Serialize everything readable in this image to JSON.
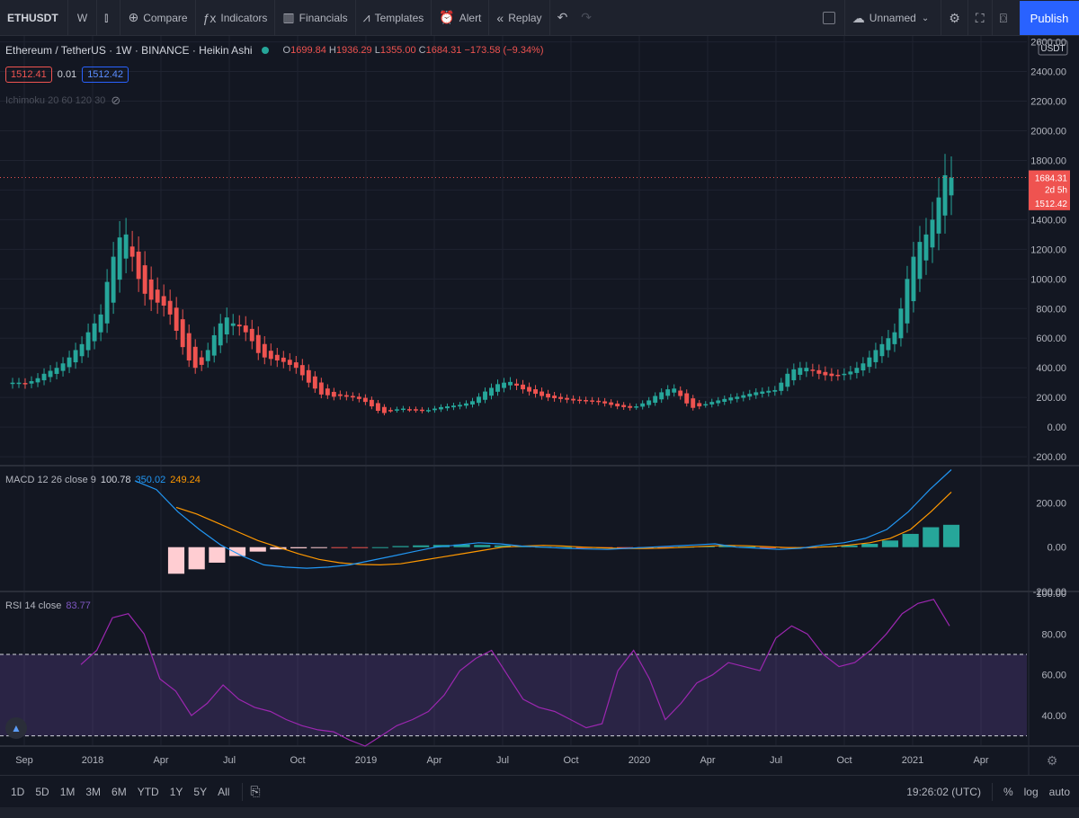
{
  "toolbar": {
    "symbol": "ETHUSDT",
    "interval": "W",
    "compare": "Compare",
    "indicators": "Indicators",
    "financials": "Financials",
    "templates": "Templates",
    "alert": "Alert",
    "replay": "Replay",
    "layout_name": "Unnamed",
    "publish": "Publish"
  },
  "legend": {
    "title": "Ethereum / TetherUS · 1W · BINANCE · Heikin Ashi",
    "o_label": "O",
    "o": "1699.84",
    "h_label": "H",
    "h": "1936.29",
    "l_label": "L",
    "l": "1355.00",
    "c_label": "C",
    "c": "1684.31",
    "change": "−173.58 (−9.34%)",
    "bid": "1512.41",
    "spread": "0.01",
    "ask": "1512.42",
    "ichimoku": "Ichimoku 20 60 120 30"
  },
  "price_axis": {
    "currency": "USDT",
    "last_price": "1684.31",
    "countdown": "2d 5h",
    "ask_tag": "1512.42"
  },
  "macd": {
    "label": "MACD 12 26 close 9",
    "hist": "100.78",
    "macd": "350.02",
    "signal": "249.24"
  },
  "rsi": {
    "label": "RSI 14 close",
    "value": "83.77"
  },
  "bottom": {
    "ranges": [
      "1D",
      "5D",
      "1M",
      "3M",
      "6M",
      "YTD",
      "1Y",
      "5Y",
      "All"
    ],
    "time": "19:26:02 (UTC)",
    "pct": "%",
    "log": "log",
    "auto": "auto"
  },
  "colors": {
    "up": "#26a69a",
    "down": "#ef5350",
    "macd_line": "#2196f3",
    "signal_line": "#ff9800",
    "rsi_line": "#9c27b0",
    "rsi_band": "#7e57c2",
    "background": "#131722"
  },
  "chart_data": [
    {
      "type": "candlestick",
      "y_axis_ticks": [
        -200,
        0,
        200,
        400,
        600,
        800,
        1000,
        1200,
        1400,
        1600,
        1800,
        2000,
        2200,
        2400,
        2600
      ],
      "y_axis_tick_labels": [
        "-200.00",
        "0.00",
        "200.00",
        "400.00",
        "600.00",
        "800.00",
        "1000.00",
        "1200.00",
        "1400.00",
        "1600.00",
        "1800.00",
        "2000.00",
        "2200.00",
        "2400.00",
        "2600.00"
      ],
      "ylim": [
        -260,
        2640
      ],
      "x_axis_labels": [
        "Sep",
        "2018",
        "Apr",
        "Jul",
        "Oct",
        "2019",
        "Apr",
        "Jul",
        "Oct",
        "2020",
        "Apr",
        "Jul",
        "Oct",
        "2021",
        "Apr"
      ],
      "close_approx": [
        300,
        300,
        290,
        310,
        330,
        360,
        380,
        400,
        430,
        470,
        520,
        560,
        640,
        700,
        760,
        980,
        1150,
        1280,
        1300,
        1150,
        1000,
        900,
        860,
        840,
        820,
        760,
        650,
        540,
        450,
        400,
        420,
        520,
        620,
        700,
        740,
        700,
        680,
        640,
        580,
        500,
        470,
        460,
        450,
        440,
        420,
        400,
        350,
        300,
        260,
        220,
        215,
        205,
        210,
        205,
        200,
        190,
        170,
        140,
        110,
        95,
        115,
        120,
        125,
        120,
        115,
        110,
        115,
        125,
        135,
        140,
        145,
        150,
        160,
        175,
        205,
        240,
        265,
        290,
        300,
        305,
        280,
        255,
        240,
        225,
        210,
        200,
        195,
        190,
        185,
        180,
        180,
        178,
        175,
        170,
        160,
        150,
        140,
        135,
        130,
        140,
        160,
        180,
        210,
        235,
        255,
        260,
        210,
        160,
        130,
        140,
        155,
        170,
        180,
        190,
        200,
        205,
        215,
        225,
        235,
        240,
        245,
        250,
        300,
        360,
        390,
        400,
        400,
        380,
        360,
        350,
        345,
        350,
        360,
        375,
        400,
        430,
        470,
        520,
        560,
        600,
        640,
        800,
        1000,
        1150,
        1250,
        1300,
        1400,
        1550,
        1700,
        1684
      ],
      "high": 1936.29,
      "low": 1355.0,
      "last": 1684.31
    },
    {
      "type": "line",
      "name": "MACD 12 26 close 9",
      "y_axis_ticks": [
        -200,
        0,
        200
      ],
      "y_axis_tick_labels": [
        "-200.00",
        "0.00",
        "200.00"
      ],
      "ylim": [
        -200,
        360
      ],
      "series": [
        {
          "name": "MACD",
          "values": [
            300,
            260,
            160,
            80,
            10,
            -40,
            -80,
            -90,
            -95,
            -90,
            -80,
            -60,
            -40,
            -20,
            0,
            10,
            20,
            15,
            5,
            0,
            -5,
            -8,
            -10,
            -5,
            0,
            5,
            10,
            15,
            0,
            -5,
            -10,
            -5,
            10,
            20,
            40,
            80,
            160,
            260,
            350
          ]
        },
        {
          "name": "Signal",
          "values": [
            180,
            150,
            110,
            70,
            30,
            0,
            -30,
            -55,
            -70,
            -78,
            -80,
            -75,
            -60,
            -45,
            -30,
            -15,
            0,
            5,
            8,
            5,
            0,
            -3,
            -6,
            -6,
            -4,
            0,
            4,
            8,
            6,
            2,
            -2,
            -2,
            2,
            10,
            20,
            40,
            80,
            160,
            249
          ]
        },
        {
          "name": "Histogram",
          "values": [
            -120,
            -100,
            -70,
            -40,
            -20,
            -10,
            -5,
            -3,
            -2,
            -1,
            0,
            5,
            8,
            10,
            12,
            10,
            8,
            5,
            2,
            0,
            -2,
            -4,
            -5,
            -3,
            -1,
            2,
            4,
            5,
            2,
            -2,
            -4,
            -2,
            4,
            8,
            15,
            30,
            60,
            90,
            101
          ]
        }
      ]
    },
    {
      "type": "line",
      "name": "RSI 14 close",
      "y_axis_ticks": [
        40,
        60,
        80,
        100
      ],
      "y_axis_tick_labels": [
        "40.00",
        "60.00",
        "80.00",
        "100.00"
      ],
      "ylim": [
        25,
        100
      ],
      "band": [
        30,
        70
      ],
      "series": [
        {
          "name": "RSI",
          "values": [
            65,
            72,
            88,
            90,
            80,
            58,
            52,
            40,
            46,
            55,
            48,
            44,
            42,
            38,
            35,
            33,
            32,
            28,
            25,
            30,
            35,
            38,
            42,
            50,
            62,
            68,
            72,
            60,
            48,
            44,
            42,
            38,
            34,
            36,
            62,
            72,
            58,
            38,
            46,
            56,
            60,
            66,
            64,
            62,
            78,
            84,
            80,
            70,
            64,
            66,
            72,
            80,
            90,
            95,
            97,
            84
          ]
        }
      ]
    }
  ]
}
